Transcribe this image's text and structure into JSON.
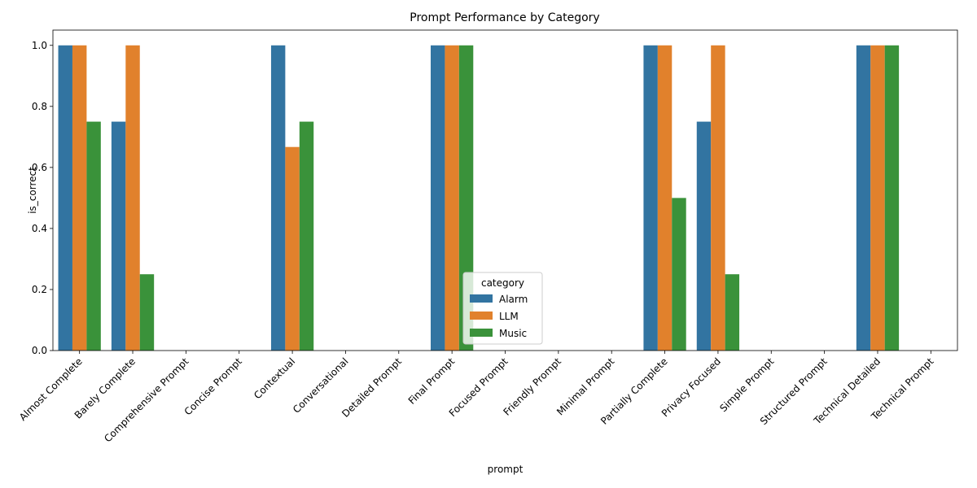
{
  "chart_data": {
    "type": "bar",
    "title": "Prompt Performance by Category",
    "xlabel": "prompt",
    "ylabel": "is_correct",
    "ylim": [
      0,
      1.05
    ],
    "yticks": [
      "0.0",
      "0.2",
      "0.4",
      "0.6",
      "0.8",
      "1.0"
    ],
    "categories": [
      "Almost Complete",
      "Barely Complete",
      "Comprehensive Prompt",
      "Concise Prompt",
      "Contextual",
      "Conversational",
      "Detailed Prompt",
      "Final Prompt",
      "Focused Prompt",
      "Friendly Prompt",
      "Minimal Prompt",
      "Partially Complete",
      "Privacy Focused",
      "Simple Prompt",
      "Structured Prompt",
      "Technical Detailed",
      "Technical Prompt"
    ],
    "series": [
      {
        "name": "Alarm",
        "color": "#3274a1",
        "values": [
          1.0,
          0.75,
          null,
          null,
          1.0,
          null,
          null,
          1.0,
          null,
          null,
          null,
          1.0,
          0.75,
          null,
          null,
          1.0,
          null
        ]
      },
      {
        "name": "LLM",
        "color": "#e1812c",
        "values": [
          1.0,
          1.0,
          null,
          null,
          0.667,
          null,
          null,
          1.0,
          null,
          null,
          null,
          1.0,
          1.0,
          null,
          null,
          1.0,
          null
        ]
      },
      {
        "name": "Music",
        "color": "#3a923a",
        "values": [
          0.75,
          0.25,
          null,
          null,
          0.75,
          null,
          null,
          1.0,
          null,
          null,
          null,
          0.5,
          0.25,
          null,
          null,
          1.0,
          null
        ]
      }
    ],
    "legend": {
      "title": "category",
      "position": "lower-center"
    },
    "grid": false
  }
}
